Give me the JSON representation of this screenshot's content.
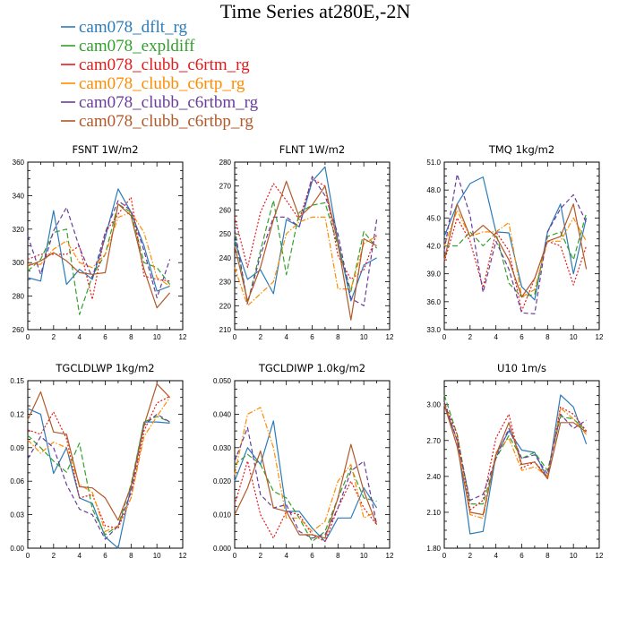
{
  "figure": {
    "title": "Time Series at280E,-2N"
  },
  "legend": [
    {
      "label": "cam078_dflt_rg",
      "color": "#2b7bb9",
      "dash": "solid"
    },
    {
      "label": "cam078_expldiff",
      "color": "#33a02c",
      "dash": "long"
    },
    {
      "label": "cam078_clubb_c6rtm_rg",
      "color": "#e31a1c",
      "dash": "dot"
    },
    {
      "label": "cam078_clubb_c6rtp_rg",
      "color": "#ff8c00",
      "dash": "dashdot"
    },
    {
      "label": "cam078_clubb_c6rtbm_rg",
      "color": "#6a3d9a",
      "dash": "dash"
    },
    {
      "label": "cam078_clubb_c6rtbp_rg",
      "color": "#b15928",
      "dash": "solid"
    }
  ],
  "chart_data": [
    {
      "type": "line",
      "title": "FSNT  1W/m2",
      "xlim": [
        0,
        12
      ],
      "ylim": [
        260,
        360
      ],
      "xticks": [
        0,
        2,
        4,
        6,
        8,
        10,
        12
      ],
      "yticks": [
        260,
        280,
        300,
        320,
        340,
        360
      ],
      "ytick_labels": [
        "260",
        "280",
        "300",
        "320",
        "340",
        "360"
      ],
      "x": [
        0,
        1,
        2,
        3,
        4,
        5,
        6,
        7,
        8,
        9,
        10,
        11
      ],
      "series": [
        {
          "name": "cam078_dflt_rg",
          "values": [
            291,
            289,
            331,
            287,
            296,
            290,
            315,
            344,
            330,
            310,
            283,
            286
          ]
        },
        {
          "name": "cam078_expldiff",
          "values": [
            295,
            302,
            318,
            320,
            269,
            292,
            305,
            335,
            330,
            300,
            297,
            287
          ]
        },
        {
          "name": "cam078_clubb_c6rtm_rg",
          "values": [
            302,
            305,
            305,
            305,
            310,
            278,
            318,
            329,
            339,
            292,
            290,
            289
          ]
        },
        {
          "name": "cam078_clubb_c6rtp_rg",
          "values": [
            299,
            299,
            308,
            313,
            300,
            297,
            305,
            327,
            330,
            318,
            291,
            286
          ]
        },
        {
          "name": "cam078_clubb_c6rtbm_rg",
          "values": [
            316,
            293,
            319,
            333,
            309,
            291,
            318,
            337,
            331,
            307,
            279,
            302
          ]
        },
        {
          "name": "cam078_clubb_c6rtbp_rg",
          "values": [
            298,
            301,
            306,
            301,
            294,
            293,
            294,
            335,
            328,
            296,
            273,
            282
          ]
        }
      ]
    },
    {
      "type": "line",
      "title": "FLNT  1W/m2",
      "xlim": [
        0,
        12
      ],
      "ylim": [
        210,
        280
      ],
      "xticks": [
        0,
        2,
        4,
        6,
        8,
        10,
        12
      ],
      "yticks": [
        210,
        220,
        230,
        240,
        250,
        260,
        270,
        280
      ],
      "ytick_labels": [
        "210",
        "220",
        "230",
        "240",
        "250",
        "260",
        "270",
        "280"
      ],
      "x": [
        0,
        1,
        2,
        3,
        4,
        5,
        6,
        7,
        8,
        9,
        10,
        11
      ],
      "series": [
        {
          "name": "cam078_dflt_rg",
          "values": [
            247,
            231,
            235,
            225,
            256,
            253,
            272,
            278,
            247,
            222,
            237,
            240
          ]
        },
        {
          "name": "cam078_expldiff",
          "values": [
            250,
            221,
            243,
            264,
            233,
            259,
            262,
            263,
            245,
            226,
            251,
            244
          ]
        },
        {
          "name": "cam078_clubb_c6rtm_rg",
          "values": [
            257,
            236,
            259,
            271,
            264,
            256,
            273,
            270,
            241,
            231,
            235,
            250
          ]
        },
        {
          "name": "cam078_clubb_c6rtp_rg",
          "values": [
            236,
            220,
            225,
            230,
            250,
            255,
            257,
            257,
            227,
            227,
            246,
            249
          ]
        },
        {
          "name": "cam078_clubb_c6rtbm_rg",
          "values": [
            252,
            221,
            241,
            257,
            257,
            253,
            274,
            266,
            250,
            223,
            220,
            256
          ]
        },
        {
          "name": "cam078_clubb_c6rtbp_rg",
          "values": [
            245,
            222,
            236,
            256,
            272,
            257,
            262,
            270,
            246,
            214,
            248,
            245
          ]
        }
      ]
    },
    {
      "type": "line",
      "title": "TMQ  1kg/m2",
      "xlim": [
        0,
        12
      ],
      "ylim": [
        33,
        51
      ],
      "xticks": [
        0,
        2,
        4,
        6,
        8,
        10,
        12
      ],
      "yticks": [
        33,
        36,
        39,
        42,
        45,
        48,
        51
      ],
      "ytick_labels": [
        "33.0",
        "36.0",
        "39.0",
        "42.0",
        "45.0",
        "48.0",
        "51.0"
      ],
      "x": [
        0,
        1,
        2,
        3,
        4,
        5,
        6,
        7,
        8,
        9,
        10,
        11
      ],
      "series": [
        {
          "name": "cam078_dflt_rg",
          "values": [
            43,
            46.5,
            48.7,
            49.4,
            43.5,
            43.4,
            37.6,
            36.2,
            43.5,
            46.5,
            39,
            45
          ]
        },
        {
          "name": "cam078_expldiff",
          "values": [
            42,
            42,
            43.5,
            42,
            43.4,
            38,
            36.5,
            36.8,
            43,
            43.5,
            40.5,
            45.5
          ]
        },
        {
          "name": "cam078_clubb_c6rtm_rg",
          "values": [
            40.3,
            45,
            42.5,
            37.5,
            43.5,
            41.5,
            35,
            38.5,
            42.5,
            42,
            37.8,
            42
          ]
        },
        {
          "name": "cam078_clubb_c6rtp_rg",
          "values": [
            42,
            45.8,
            43,
            43.5,
            43.5,
            44.5,
            36.5,
            37.3,
            42.5,
            42.5,
            45,
            42.5
          ]
        },
        {
          "name": "cam078_clubb_c6rtbm_rg",
          "values": [
            41.5,
            49.7,
            45.3,
            37,
            42.5,
            39.5,
            34.8,
            34.7,
            43.5,
            46,
            47.5,
            44.5
          ]
        },
        {
          "name": "cam078_clubb_c6rtbp_rg",
          "values": [
            40.5,
            46.5,
            43,
            44.2,
            43,
            40.5,
            36.5,
            38.5,
            42.5,
            43,
            46.5,
            39.5
          ]
        }
      ]
    },
    {
      "type": "line",
      "title": "TGCLDLWP  1kg/m2",
      "xlim": [
        0,
        12
      ],
      "ylim": [
        0,
        0.15
      ],
      "xticks": [
        0,
        2,
        4,
        6,
        8,
        10,
        12
      ],
      "yticks": [
        0,
        0.03,
        0.06,
        0.09,
        0.12,
        0.15
      ],
      "ytick_labels": [
        "0.00",
        "0.03",
        "0.06",
        "0.09",
        "0.12",
        "0.15"
      ],
      "x": [
        0,
        1,
        2,
        3,
        4,
        5,
        6,
        7,
        8,
        9,
        10,
        11
      ],
      "series": [
        {
          "name": "cam078_dflt_rg",
          "values": [
            0.125,
            0.12,
            0.067,
            0.09,
            0.045,
            0.04,
            0.01,
            0.0,
            0.055,
            0.113,
            0.113,
            0.112
          ]
        },
        {
          "name": "cam078_expldiff",
          "values": [
            0.101,
            0.09,
            0.078,
            0.068,
            0.094,
            0.035,
            0.012,
            0.02,
            0.057,
            0.113,
            0.118,
            0.113
          ]
        },
        {
          "name": "cam078_clubb_c6rtm_rg",
          "values": [
            0.106,
            0.102,
            0.122,
            0.098,
            0.045,
            0.048,
            0.02,
            0.018,
            0.045,
            0.105,
            0.13,
            0.136
          ]
        },
        {
          "name": "cam078_clubb_c6rtp_rg",
          "values": [
            0.097,
            0.085,
            0.095,
            0.09,
            0.057,
            0.05,
            0.015,
            0.02,
            0.045,
            0.1,
            0.118,
            0.135
          ]
        },
        {
          "name": "cam078_clubb_c6rtbm_rg",
          "values": [
            0.08,
            0.1,
            0.09,
            0.057,
            0.035,
            0.03,
            0.008,
            0.02,
            0.05,
            0.11,
            0.12,
            0.113
          ]
        },
        {
          "name": "cam078_clubb_c6rtbp_rg",
          "values": [
            0.115,
            0.14,
            0.104,
            0.102,
            0.055,
            0.054,
            0.045,
            0.025,
            0.055,
            0.11,
            0.147,
            0.135
          ]
        }
      ]
    },
    {
      "type": "line",
      "title": "TGCLDIWP  1.0kg/m2",
      "xlim": [
        0,
        12
      ],
      "ylim": [
        0,
        0.05
      ],
      "xticks": [
        0,
        2,
        4,
        6,
        8,
        10,
        12
      ],
      "yticks": [
        0,
        0.01,
        0.02,
        0.03,
        0.04,
        0.05
      ],
      "ytick_labels": [
        "0.000",
        "0.010",
        "0.020",
        "0.030",
        "0.040",
        "0.050"
      ],
      "x": [
        0,
        1,
        2,
        3,
        4,
        5,
        6,
        7,
        8,
        9,
        10,
        11
      ],
      "series": [
        {
          "name": "cam078_dflt_rg",
          "values": [
            0.02,
            0.03,
            0.025,
            0.038,
            0.011,
            0.011,
            0.006,
            0.002,
            0.009,
            0.009,
            0.018,
            0.012
          ]
        },
        {
          "name": "cam078_expldiff",
          "values": [
            0.025,
            0.028,
            0.025,
            0.017,
            0.015,
            0.009,
            0.002,
            0.005,
            0.015,
            0.024,
            0.015,
            0.014
          ]
        },
        {
          "name": "cam078_clubb_c6rtm_rg",
          "values": [
            0.013,
            0.026,
            0.01,
            0.003,
            0.011,
            0.01,
            0.004,
            0.002,
            0.012,
            0.02,
            0.012,
            0.007
          ]
        },
        {
          "name": "cam078_clubb_c6rtp_rg",
          "values": [
            0.022,
            0.04,
            0.042,
            0.03,
            0.009,
            0.009,
            0.005,
            0.008,
            0.02,
            0.025,
            0.009,
            0.011
          ]
        },
        {
          "name": "cam078_clubb_c6rtbm_rg",
          "values": [
            0.026,
            0.036,
            0.016,
            0.012,
            0.013,
            0.005,
            0.003,
            0.004,
            0.012,
            0.023,
            0.026,
            0.007
          ]
        },
        {
          "name": "cam078_clubb_c6rtbp_rg",
          "values": [
            0.01,
            0.018,
            0.029,
            0.012,
            0.011,
            0.004,
            0.004,
            0.003,
            0.015,
            0.031,
            0.017,
            0.007
          ]
        }
      ]
    },
    {
      "type": "line",
      "title": "U10  1m/s",
      "xlim": [
        0,
        12
      ],
      "ylim": [
        1.8,
        3.2
      ],
      "xticks": [
        0,
        2,
        4,
        6,
        8,
        10,
        12
      ],
      "yticks": [
        1.8,
        2.1,
        2.4,
        2.7,
        3.0
      ],
      "ytick_labels": [
        "1.80",
        "2.10",
        "2.40",
        "2.70",
        "3.00"
      ],
      "x": [
        0,
        1,
        2,
        3,
        4,
        5,
        6,
        7,
        8,
        9,
        10,
        11
      ],
      "series": [
        {
          "name": "cam078_dflt_rg",
          "values": [
            3.0,
            2.7,
            1.92,
            1.94,
            2.58,
            2.78,
            2.62,
            2.6,
            2.38,
            3.08,
            2.98,
            2.67
          ]
        },
        {
          "name": "cam078_expldiff",
          "values": [
            3.08,
            2.75,
            2.17,
            2.17,
            2.55,
            2.74,
            2.55,
            2.6,
            2.45,
            2.9,
            2.88,
            2.78
          ]
        },
        {
          "name": "cam078_clubb_c6rtm_rg",
          "values": [
            3.02,
            2.75,
            2.12,
            2.2,
            2.72,
            2.92,
            2.47,
            2.52,
            2.4,
            2.98,
            2.92,
            2.78
          ]
        },
        {
          "name": "cam078_clubb_c6rtp_rg",
          "values": [
            3.02,
            2.7,
            2.08,
            2.05,
            2.6,
            2.72,
            2.45,
            2.48,
            2.4,
            2.97,
            2.88,
            2.75
          ]
        },
        {
          "name": "cam078_clubb_c6rtbm_rg",
          "values": [
            3.02,
            2.7,
            2.2,
            2.25,
            2.55,
            2.8,
            2.55,
            2.58,
            2.42,
            2.92,
            2.8,
            2.87
          ]
        },
        {
          "name": "cam078_clubb_c6rtbp_rg",
          "values": [
            3.0,
            2.65,
            2.1,
            2.08,
            2.58,
            2.85,
            2.5,
            2.52,
            2.38,
            2.85,
            2.85,
            2.77
          ]
        }
      ]
    }
  ]
}
